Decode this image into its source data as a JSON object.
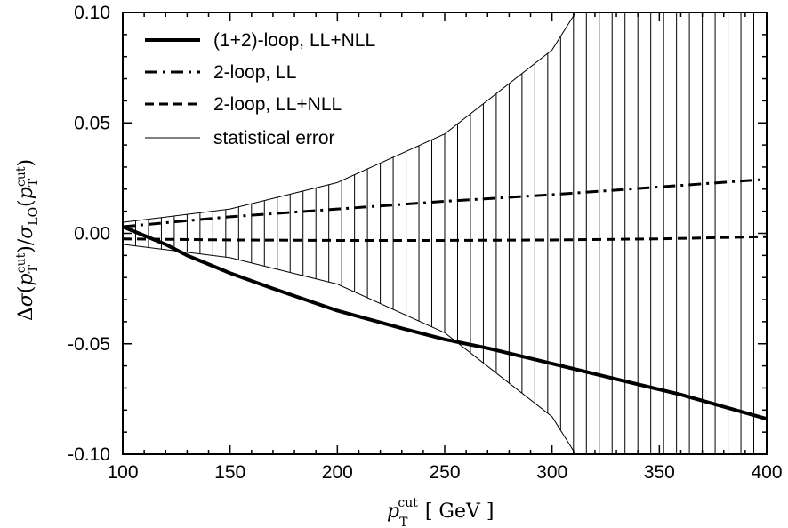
{
  "chart_data": {
    "type": "line",
    "xlim": [
      100,
      400
    ],
    "ylim": [
      -0.1,
      0.1
    ],
    "x_ticks": [
      100,
      150,
      200,
      250,
      300,
      350,
      400
    ],
    "y_ticks": [
      0.1,
      0.05,
      0.0,
      -0.05,
      -0.1
    ],
    "x_tick_labels": [
      "100",
      "150",
      "200",
      "250",
      "300",
      "350",
      "400"
    ],
    "y_tick_labels": [
      "0.10",
      "0.05",
      "0.00",
      "-0.05",
      "-0.10"
    ],
    "xlabel": {
      "main": "p",
      "sub": "T",
      "sup": "cut",
      "unit": "[ GeV ]"
    },
    "ylabel": {
      "text": "Δσ(p_T^cut)/σ_LO(p_T^cut)"
    },
    "legend_position": "top-left",
    "grid": false,
    "series": [
      {
        "name": "(1+2)-loop, LL+NLL",
        "style": "solid-thick",
        "x": [
          100,
          110,
          120,
          130,
          150,
          170,
          200,
          230,
          250,
          270,
          300,
          330,
          360,
          400
        ],
        "y": [
          0.003,
          -0.001,
          -0.005,
          -0.01,
          -0.018,
          -0.025,
          -0.035,
          -0.043,
          -0.048,
          -0.052,
          -0.059,
          -0.066,
          -0.073,
          -0.084
        ]
      },
      {
        "name": "2-loop, LL",
        "style": "dash-dot",
        "x": [
          100,
          150,
          200,
          250,
          300,
          350,
          400
        ],
        "y": [
          0.003,
          0.0075,
          0.011,
          0.0145,
          0.0175,
          0.021,
          0.0245
        ]
      },
      {
        "name": "2-loop, LL+NLL",
        "style": "dashed",
        "x": [
          100,
          150,
          200,
          250,
          300,
          350,
          400
        ],
        "y": [
          -0.0025,
          -0.003,
          -0.0032,
          -0.0032,
          -0.003,
          -0.0025,
          -0.0015
        ]
      },
      {
        "name": "statistical error",
        "style": "thin-band",
        "x": [
          100,
          150,
          200,
          250,
          300,
          311,
          350,
          400
        ],
        "upper": [
          0.005,
          0.011,
          0.023,
          0.045,
          0.083,
          0.1,
          0.1,
          0.1
        ],
        "lower": [
          -0.005,
          -0.011,
          -0.023,
          -0.045,
          -0.083,
          -0.1,
          -0.1,
          -0.1
        ]
      }
    ]
  }
}
